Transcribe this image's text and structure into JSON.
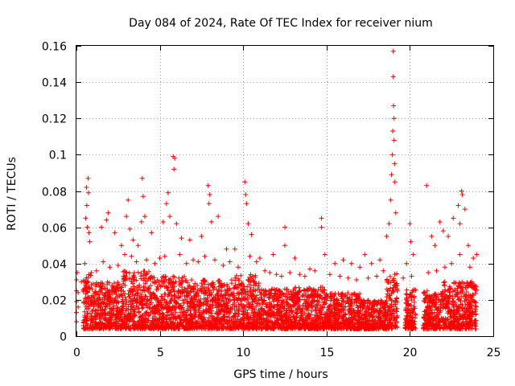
{
  "chart_data": {
    "type": "scatter",
    "title": "Day 084 of 2024, Rate Of TEC Index for receiver nium",
    "xlabel": "GPS time / hours",
    "ylabel": "ROTI / TECUs",
    "xlim": [
      0,
      25
    ],
    "ylim": [
      0,
      0.16
    ],
    "xticks": [
      0,
      5,
      10,
      15,
      20,
      25
    ],
    "yticks": [
      0,
      0.02,
      0.04,
      0.06,
      0.08,
      0.1,
      0.12,
      0.14,
      0.16
    ],
    "xtick_labels": [
      "0",
      "5",
      "10",
      "15",
      "20",
      "25"
    ],
    "ytick_labels": [
      "0",
      "0.02",
      "0.04",
      "0.06",
      "0.08",
      "0.1",
      "0.12",
      "0.14",
      "0.16"
    ],
    "grid": true,
    "marker": "+",
    "color": "#ff0000",
    "series": [
      {
        "points": [
          [
            0.0,
            0.031
          ],
          [
            0.0,
            0.025
          ],
          [
            0.0,
            0.019
          ],
          [
            0.0,
            0.013
          ],
          [
            0.0,
            0.008
          ],
          [
            0.05,
            0.035
          ],
          [
            0.1,
            0.024
          ],
          [
            0.1,
            0.016
          ],
          [
            0.55,
            0.065
          ],
          [
            0.6,
            0.082
          ],
          [
            0.62,
            0.072
          ],
          [
            0.65,
            0.06
          ],
          [
            0.7,
            0.087
          ],
          [
            0.72,
            0.079
          ],
          [
            0.75,
            0.057
          ],
          [
            0.8,
            0.052
          ],
          [
            1.5,
            0.06
          ],
          [
            1.8,
            0.064
          ],
          [
            1.9,
            0.068
          ],
          [
            2.3,
            0.057
          ],
          [
            2.7,
            0.05
          ],
          [
            3.0,
            0.066
          ],
          [
            3.1,
            0.075
          ],
          [
            3.2,
            0.059
          ],
          [
            3.4,
            0.053
          ],
          [
            3.7,
            0.05
          ],
          [
            3.9,
            0.063
          ],
          [
            3.95,
            0.087
          ],
          [
            4.0,
            0.077
          ],
          [
            4.1,
            0.066
          ],
          [
            4.5,
            0.057
          ],
          [
            5.2,
            0.063
          ],
          [
            5.4,
            0.073
          ],
          [
            5.5,
            0.079
          ],
          [
            5.6,
            0.066
          ],
          [
            5.8,
            0.099
          ],
          [
            5.85,
            0.092
          ],
          [
            5.9,
            0.098
          ],
          [
            6.0,
            0.062
          ],
          [
            6.3,
            0.054
          ],
          [
            6.8,
            0.053
          ],
          [
            7.5,
            0.055
          ],
          [
            7.9,
            0.083
          ],
          [
            7.95,
            0.073
          ],
          [
            8.0,
            0.078
          ],
          [
            8.1,
            0.063
          ],
          [
            8.5,
            0.066
          ],
          [
            9.0,
            0.048
          ],
          [
            9.5,
            0.048
          ],
          [
            10.1,
            0.085
          ],
          [
            10.15,
            0.078
          ],
          [
            10.2,
            0.073
          ],
          [
            10.3,
            0.062
          ],
          [
            10.5,
            0.056
          ],
          [
            11.0,
            0.043
          ],
          [
            11.8,
            0.045
          ],
          [
            12.5,
            0.06
          ],
          [
            12.5,
            0.05
          ],
          [
            13.1,
            0.043
          ],
          [
            14.0,
            0.037
          ],
          [
            14.7,
            0.065
          ],
          [
            14.7,
            0.06
          ],
          [
            14.9,
            0.045
          ],
          [
            15.5,
            0.04
          ],
          [
            16.0,
            0.042
          ],
          [
            16.5,
            0.04
          ],
          [
            17.0,
            0.038
          ],
          [
            17.3,
            0.045
          ],
          [
            17.7,
            0.04
          ],
          [
            18.2,
            0.042
          ],
          [
            18.6,
            0.055
          ],
          [
            18.75,
            0.062
          ],
          [
            18.85,
            0.075
          ],
          [
            18.9,
            0.089
          ],
          [
            18.95,
            0.1
          ],
          [
            18.97,
            0.113
          ],
          [
            19.0,
            0.157
          ],
          [
            19.0,
            0.143
          ],
          [
            19.02,
            0.127
          ],
          [
            19.05,
            0.12
          ],
          [
            19.05,
            0.108
          ],
          [
            19.08,
            0.095
          ],
          [
            19.1,
            0.085
          ],
          [
            19.15,
            0.068
          ],
          [
            19.8,
            0.04
          ],
          [
            20.0,
            0.062
          ],
          [
            20.05,
            0.052
          ],
          [
            20.2,
            0.045
          ],
          [
            21.0,
            0.083
          ],
          [
            21.3,
            0.055
          ],
          [
            21.5,
            0.05
          ],
          [
            21.8,
            0.063
          ],
          [
            22.0,
            0.058
          ],
          [
            22.3,
            0.055
          ],
          [
            22.6,
            0.065
          ],
          [
            22.9,
            0.072
          ],
          [
            23.0,
            0.062
          ],
          [
            23.1,
            0.08
          ],
          [
            23.15,
            0.078
          ],
          [
            23.3,
            0.07
          ],
          [
            23.5,
            0.05
          ],
          [
            23.8,
            0.043
          ],
          [
            24.0,
            0.045
          ],
          [
            0.3,
            0.03
          ],
          [
            0.5,
            0.04
          ],
          [
            0.9,
            0.035
          ],
          [
            1.2,
            0.036
          ],
          [
            1.6,
            0.041
          ],
          [
            2.0,
            0.038
          ],
          [
            2.5,
            0.039
          ],
          [
            2.9,
            0.045
          ],
          [
            3.3,
            0.044
          ],
          [
            3.6,
            0.041
          ],
          [
            4.2,
            0.042
          ],
          [
            4.7,
            0.04
          ],
          [
            5.0,
            0.043
          ],
          [
            5.3,
            0.044
          ],
          [
            6.2,
            0.045
          ],
          [
            6.6,
            0.04
          ],
          [
            7.0,
            0.042
          ],
          [
            7.3,
            0.041
          ],
          [
            7.7,
            0.044
          ],
          [
            8.3,
            0.042
          ],
          [
            8.8,
            0.039
          ],
          [
            9.2,
            0.041
          ],
          [
            9.7,
            0.038
          ],
          [
            10.4,
            0.044
          ],
          [
            10.8,
            0.041
          ],
          [
            11.3,
            0.036
          ],
          [
            11.6,
            0.035
          ],
          [
            12.0,
            0.034
          ],
          [
            12.3,
            0.033
          ],
          [
            12.8,
            0.035
          ],
          [
            13.4,
            0.034
          ],
          [
            13.7,
            0.033
          ],
          [
            14.3,
            0.036
          ],
          [
            15.2,
            0.034
          ],
          [
            15.8,
            0.033
          ],
          [
            16.3,
            0.032
          ],
          [
            16.8,
            0.031
          ],
          [
            17.5,
            0.032
          ],
          [
            18.0,
            0.033
          ],
          [
            18.4,
            0.036
          ],
          [
            19.6,
            0.032
          ],
          [
            20.1,
            0.033
          ],
          [
            21.1,
            0.035
          ],
          [
            21.6,
            0.036
          ],
          [
            22.1,
            0.038
          ],
          [
            22.5,
            0.04
          ],
          [
            23.0,
            0.045
          ],
          [
            23.6,
            0.038
          ]
        ]
      }
    ],
    "dense_band": {
      "start": 0.0,
      "end": 24.0,
      "gaps": [
        [
          0.15,
          0.4
        ],
        [
          19.25,
          19.7
        ],
        [
          20.35,
          20.8
        ]
      ],
      "segments": [
        [
          0.4,
          1.0,
          0.034
        ],
        [
          1.0,
          2.8,
          0.03
        ],
        [
          2.8,
          4.5,
          0.036
        ],
        [
          4.5,
          6.5,
          0.033
        ],
        [
          6.5,
          9.5,
          0.031
        ],
        [
          9.5,
          11.0,
          0.034
        ],
        [
          11.0,
          13.0,
          0.026
        ],
        [
          13.0,
          15.0,
          0.027
        ],
        [
          15.0,
          17.0,
          0.024
        ],
        [
          17.0,
          18.6,
          0.02
        ],
        [
          18.6,
          19.25,
          0.035
        ],
        [
          19.7,
          20.35,
          0.026
        ],
        [
          20.8,
          22.0,
          0.025
        ],
        [
          22.0,
          24.0,
          0.03
        ]
      ],
      "floor": 0.004
    }
  }
}
